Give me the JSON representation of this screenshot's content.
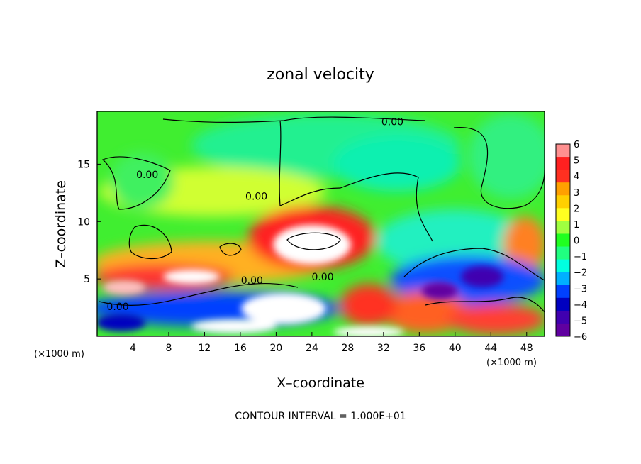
{
  "chart_data": {
    "type": "heatmap",
    "title": "zonal velocity",
    "xlabel": "X–coordinate",
    "ylabel": "Z–coordinate",
    "x_unit_left": "(×1000 m)",
    "x_unit_right": "(×1000 m)",
    "xlim": [
      0,
      50
    ],
    "ylim": [
      0,
      19.6
    ],
    "x_ticks": [
      4,
      8,
      12,
      16,
      20,
      24,
      28,
      32,
      36,
      40,
      44,
      48
    ],
    "y_ticks": [
      5,
      10,
      15
    ],
    "colorbar": {
      "range": [
        -6,
        6
      ],
      "ticks": [
        6,
        5,
        4,
        3,
        2,
        1,
        0,
        -1,
        -2,
        -3,
        -4,
        -5,
        -6
      ],
      "colors": [
        "#ff9090",
        "#ff2020",
        "#ff3020",
        "#ffa000",
        "#ffd000",
        "#ffff20",
        "#a0ff40",
        "#20ff20",
        "#20ff80",
        "#00ffe0",
        "#00b0ff",
        "#0040ff",
        "#0000c0",
        "#4000b0",
        "#6000a0"
      ]
    },
    "contour_labels": [
      {
        "text": "0.00",
        "x": 33,
        "y": 18.7
      },
      {
        "text": "0.00",
        "x": 5.6,
        "y": 14.1
      },
      {
        "text": "0.00",
        "x": 17.8,
        "y": 12.2
      },
      {
        "text": "0.00",
        "x": 17.3,
        "y": 4.9
      },
      {
        "text": "0.00",
        "x": 2.3,
        "y": 2.6
      },
      {
        "text": "0.00",
        "x": 25.2,
        "y": 5.2
      }
    ],
    "contour_interval_note": "CONTOUR INTERVAL = 1.000E+01"
  }
}
